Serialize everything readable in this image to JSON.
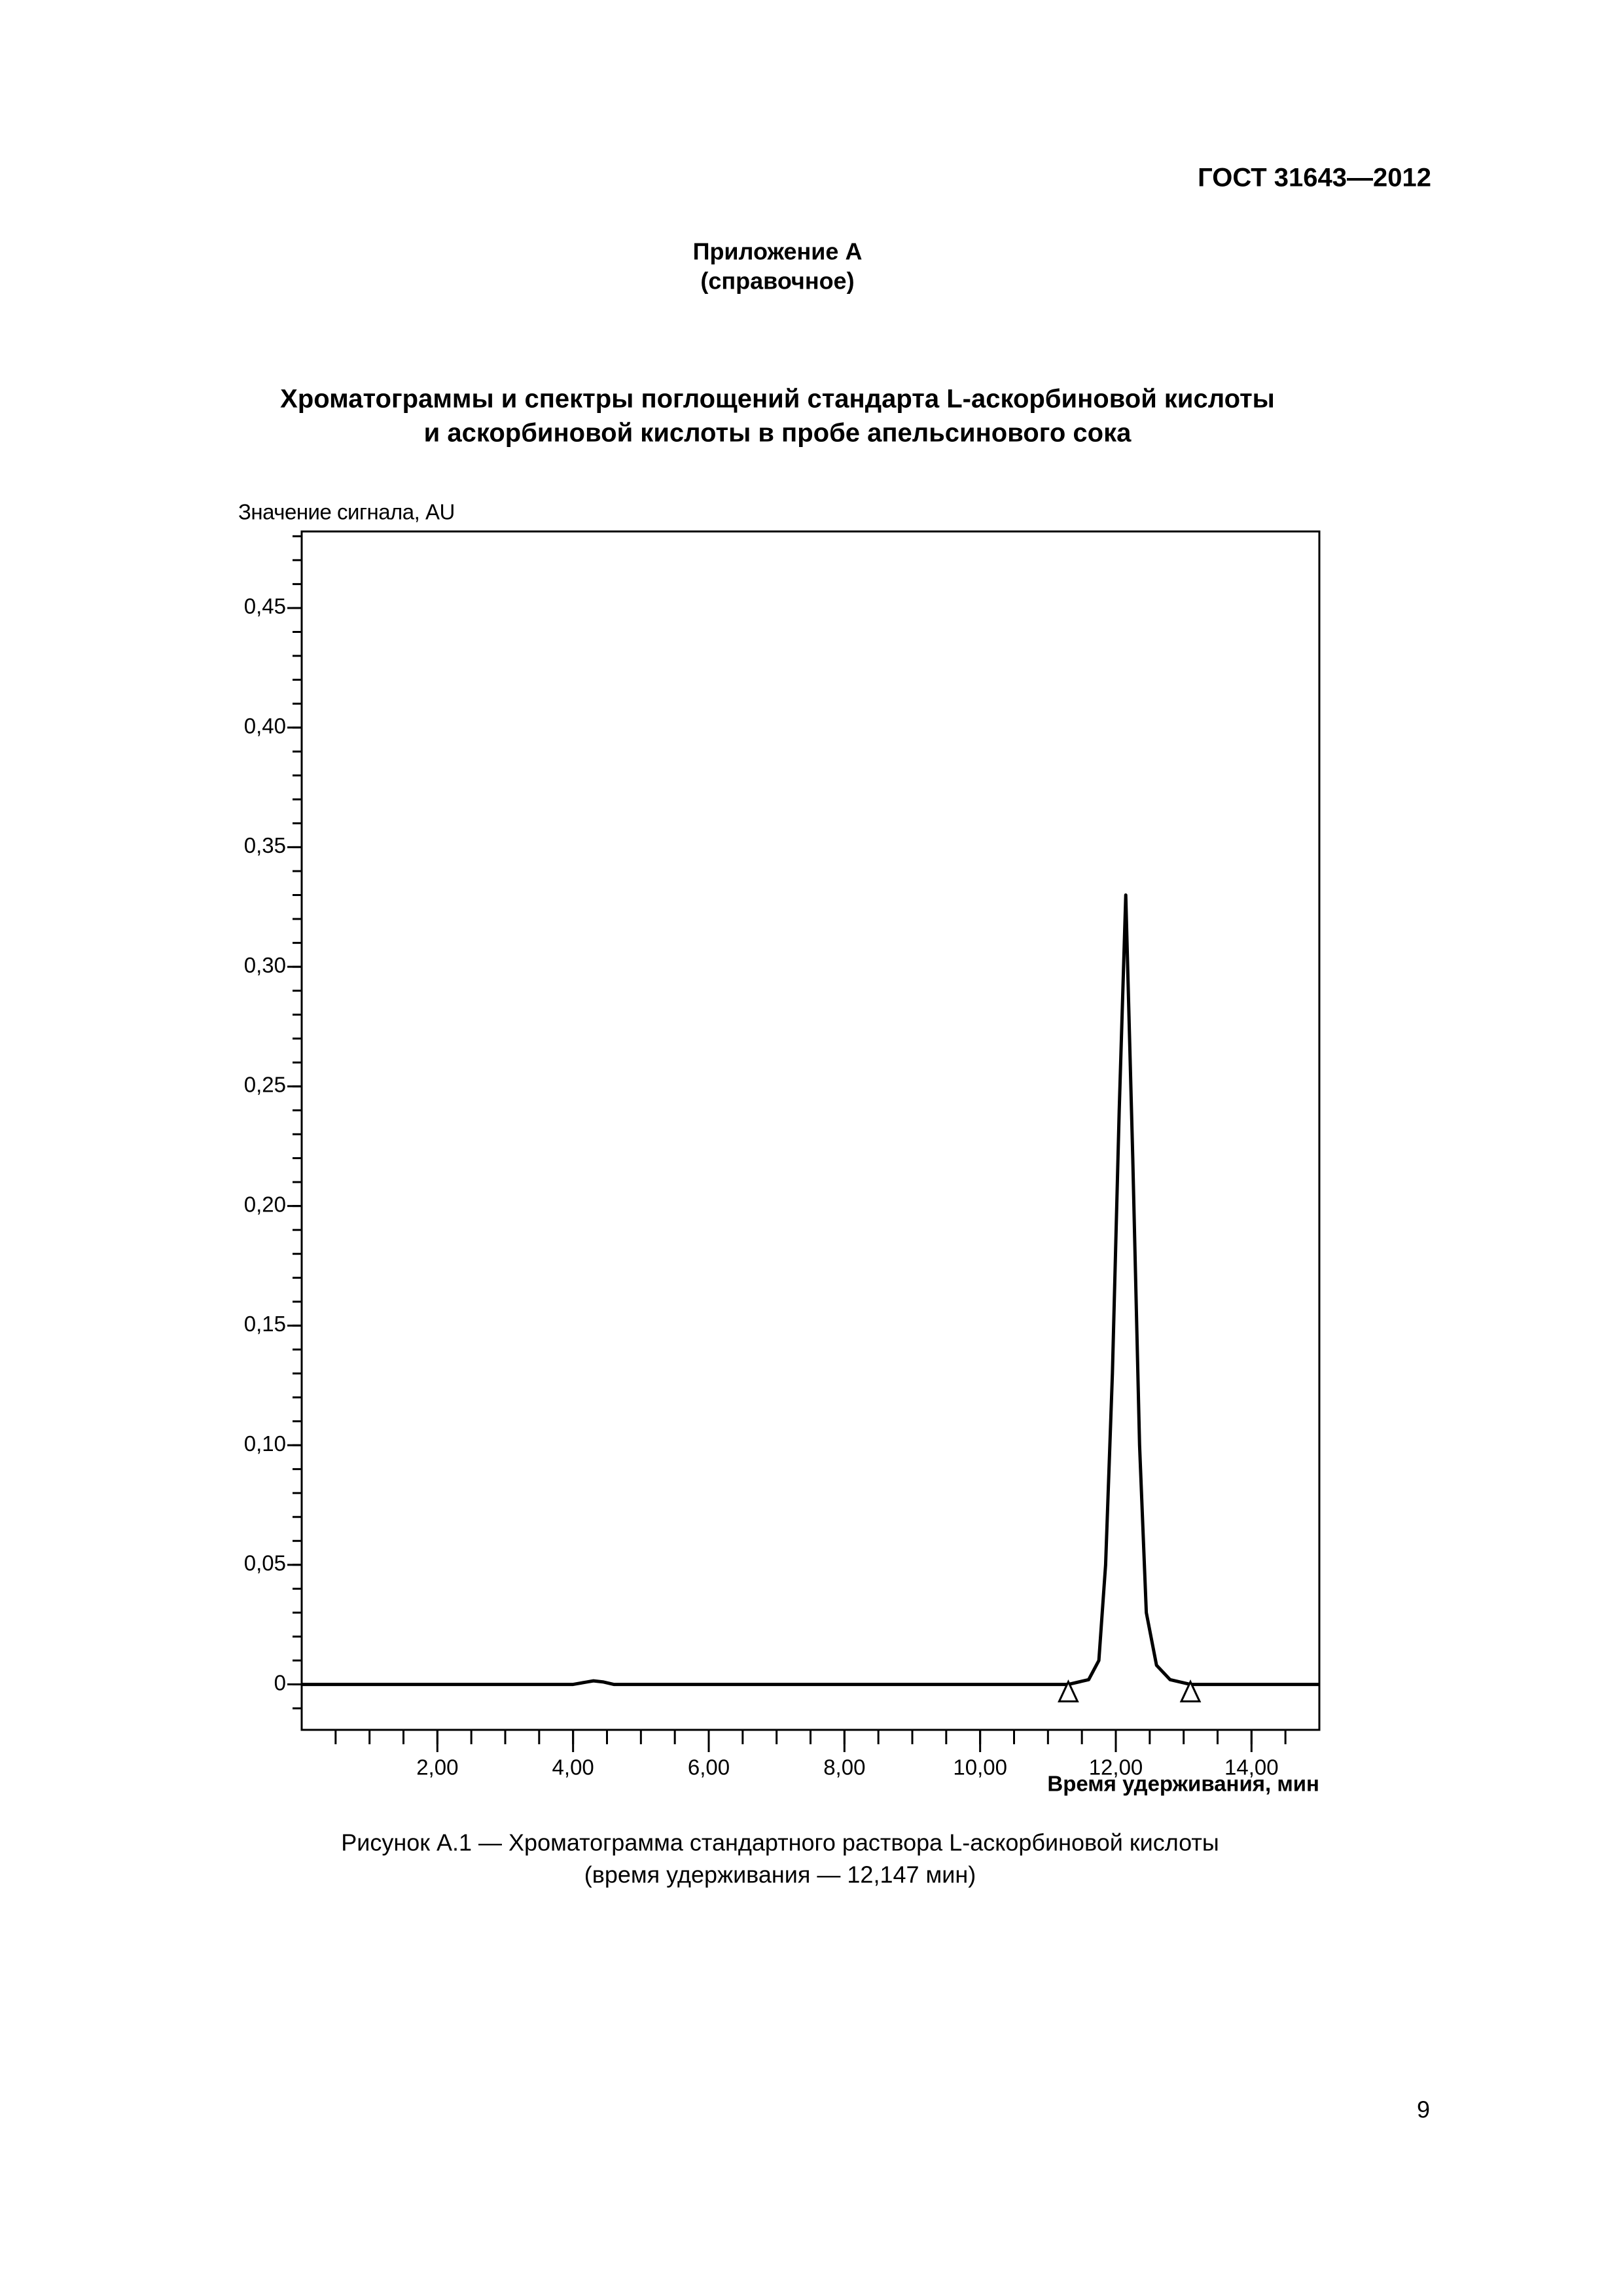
{
  "header": {
    "code": "ГОСТ 31643—2012"
  },
  "appendix": {
    "name": "Приложение А",
    "kind": "(справочное)"
  },
  "title": [
    "Хроматограммы и спектры поглощений стандарта L-аскорбиновой кислоты",
    "и аскорбиновой кислоты в пробе апельсинового сока"
  ],
  "chart_data": {
    "type": "line",
    "y_label": "Значение сигнала, AU",
    "x_label": "Время удерживания, мин",
    "x": [
      0,
      4.0,
      4.2,
      4.3,
      4.45,
      4.6,
      11.3,
      11.6,
      11.75,
      11.85,
      11.95,
      12.05,
      12.147,
      12.25,
      12.35,
      12.45,
      12.6,
      12.8,
      13.1,
      15
    ],
    "values": [
      0,
      0,
      0.001,
      0.0015,
      0.001,
      0,
      0,
      0.002,
      0.01,
      0.05,
      0.13,
      0.24,
      0.33,
      0.22,
      0.1,
      0.03,
      0.008,
      0.002,
      0,
      0
    ],
    "color": "#000000",
    "markers": [
      11.3,
      13.1
    ],
    "xlim": [
      0,
      15
    ],
    "ylim": [
      -0.019,
      0.482
    ],
    "xticks": [
      {
        "value": 2,
        "label": "2,00"
      },
      {
        "value": 4,
        "label": "4,00"
      },
      {
        "value": 6,
        "label": "6,00"
      },
      {
        "value": 8,
        "label": "8,00"
      },
      {
        "value": 10,
        "label": "10,00"
      },
      {
        "value": 12,
        "label": "12,00"
      },
      {
        "value": 14,
        "label": "14,00"
      }
    ],
    "yticks": [
      0,
      {
        "value": 0.05,
        "label": "0,05"
      },
      {
        "value": 0.1,
        "label": "0,10"
      },
      {
        "value": 0.15,
        "label": "0,15"
      },
      {
        "value": 0.2,
        "label": "0,20"
      },
      {
        "value": 0.25,
        "label": "0,25"
      },
      {
        "value": 0.3,
        "label": "0,30"
      },
      {
        "value": 0.35,
        "label": "0,35"
      },
      {
        "value": 0.4,
        "label": "0,40"
      },
      {
        "value": 0.45,
        "label": "0,45"
      }
    ],
    "grid": false
  },
  "caption": [
    "Рисунок А.1 — Хроматограмма стандартного раствора L-аскорбиновой кислоты",
    "(время удерживания — 12,147 мин)"
  ],
  "page_number": "9"
}
